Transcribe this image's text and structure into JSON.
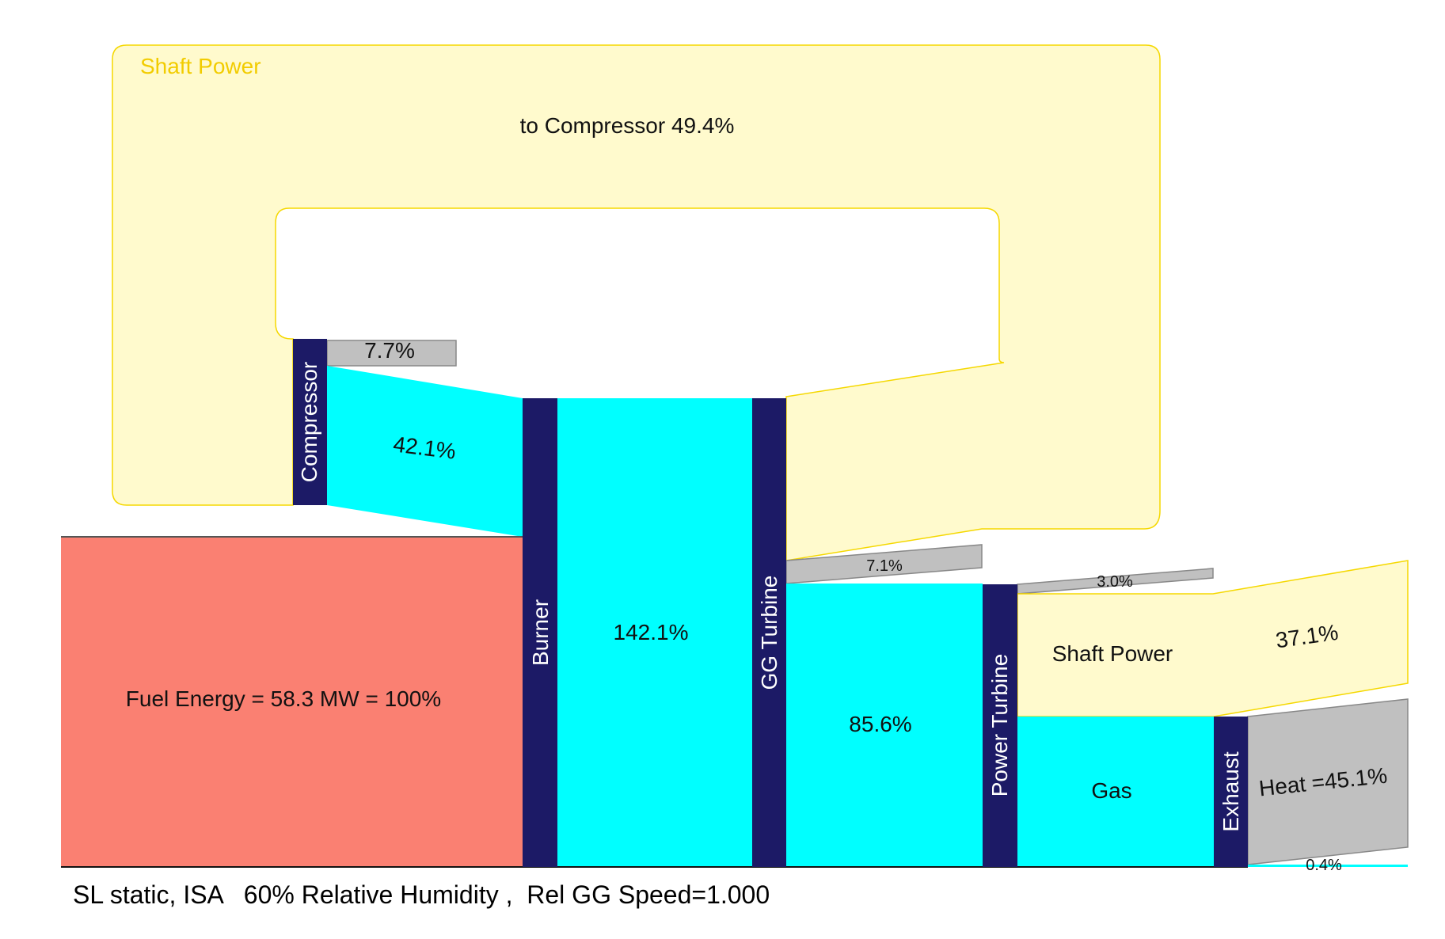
{
  "colors": {
    "shaft_fill": "#FFFACD",
    "shaft_stroke": "#F5D800",
    "shaft_label": "#F2CC00",
    "gas": "#00FFFF",
    "fuel": "#FA8072",
    "loss": "#C0C0C0",
    "node": "#1C1A66"
  },
  "labels": {
    "shaft_loop_title": "Shaft Power",
    "to_compressor": "to Compressor 49.4%",
    "compressor_loss": "7.7%",
    "compressor_out": "42.1%",
    "fuel_energy": "Fuel Energy = 58.3 MW = 100%",
    "burner_out": "142.1%",
    "gg_turbine_loss": "7.1%",
    "gg_turbine_out": "85.6%",
    "power_turbine_loss": "3.0%",
    "shaft_power": "Shaft Power",
    "shaft_power_out": "37.1%",
    "gas": "Gas",
    "exhaust_heat": "Heat =45.1%",
    "exhaust_small": "0.4%"
  },
  "nodes": {
    "compressor": "Compressor",
    "burner": "Burner",
    "gg_turbine": "GG Turbine",
    "power_turbine": "Power Turbine",
    "exhaust": "Exhaust"
  },
  "caption": "SL static, ISA   60% Relative Humidity ,  Rel GG Speed=1.000"
}
